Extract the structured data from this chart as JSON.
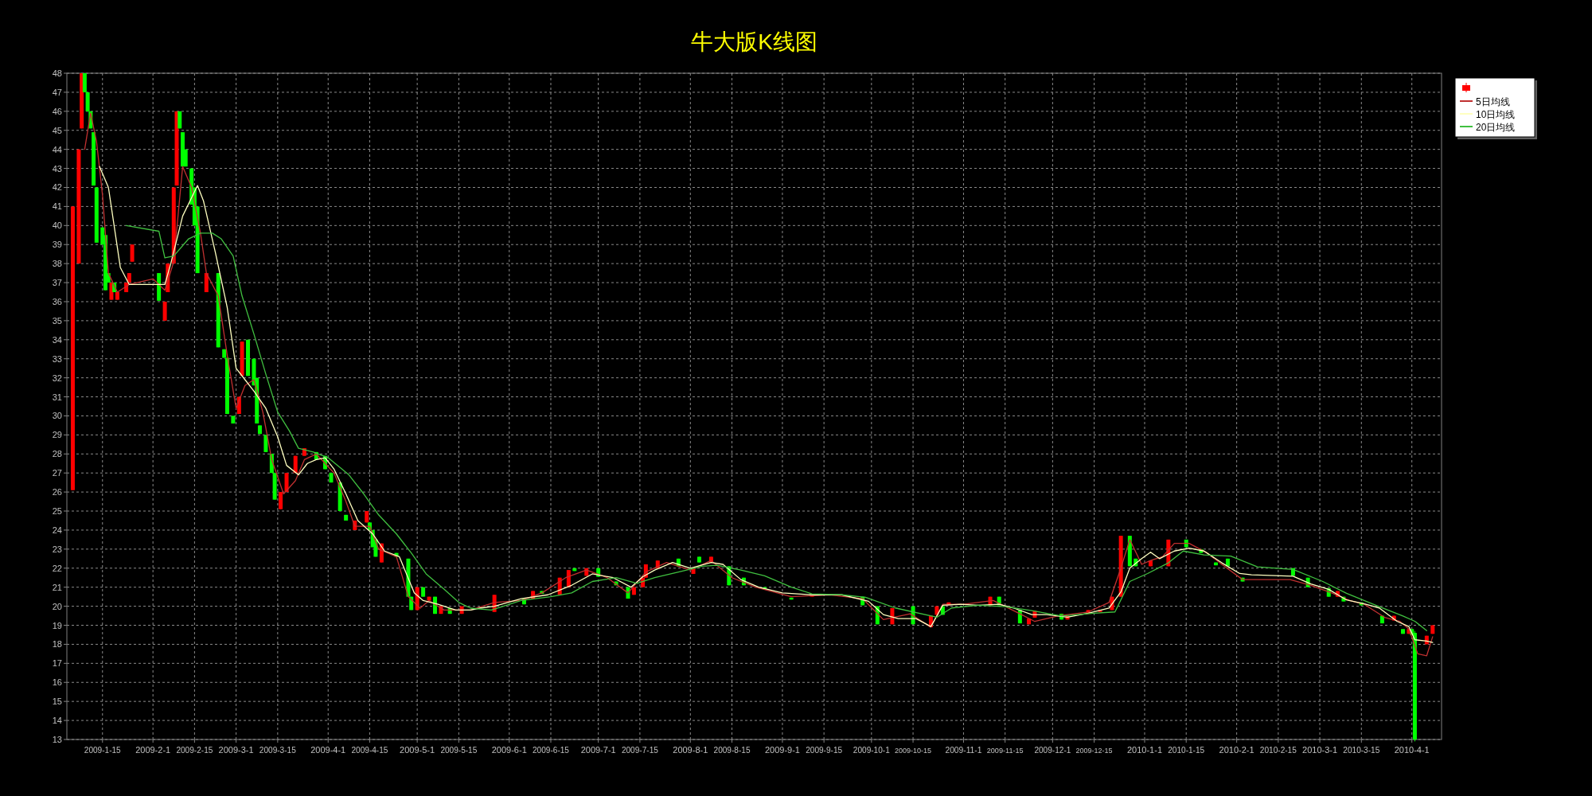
{
  "chart_data": {
    "type": "candlestick",
    "title": "牛大版K线图",
    "xlim": [
      "2009-01-03",
      "2010-04-11"
    ],
    "ylim": [
      13,
      48
    ],
    "xticks": [
      {
        "value": "2009-01-15",
        "label": "2009-1-15"
      },
      {
        "value": "2009-02-01",
        "label": "2009-2-1"
      },
      {
        "value": "2009-02-15",
        "label": "2009-2-15"
      },
      {
        "value": "2009-03-01",
        "label": "2009-3-1"
      },
      {
        "value": "2009-03-15",
        "label": "2009-3-15"
      },
      {
        "value": "2009-04-01",
        "label": "2009-4-1"
      },
      {
        "value": "2009-04-15",
        "label": "2009-4-15"
      },
      {
        "value": "2009-05-01",
        "label": "2009-5-1"
      },
      {
        "value": "2009-05-15",
        "label": "2009-5-15"
      },
      {
        "value": "2009-06-01",
        "label": "2009-6-1"
      },
      {
        "value": "2009-06-15",
        "label": "2009-6-15"
      },
      {
        "value": "2009-07-01",
        "label": "2009-7-1"
      },
      {
        "value": "2009-07-15",
        "label": "2009-7-15"
      },
      {
        "value": "2009-08-01",
        "label": "2009-8-1"
      },
      {
        "value": "2009-08-15",
        "label": "2009-8-15"
      },
      {
        "value": "2009-09-01",
        "label": "2009-9-1"
      },
      {
        "value": "2009-09-15",
        "label": "2009-9-15"
      },
      {
        "value": "2009-10-01",
        "label": "2009-10-1"
      },
      {
        "value": "2009-10-15",
        "label": "2009-10-15"
      },
      {
        "value": "2009-11-01",
        "label": "2009-11-1"
      },
      {
        "value": "2009-11-15",
        "label": "2009-11-15"
      },
      {
        "value": "2009-12-01",
        "label": "2009-12-1"
      },
      {
        "value": "2009-12-15",
        "label": "2009-12-15"
      },
      {
        "value": "2010-01-01",
        "label": "2010-1-1"
      },
      {
        "value": "2010-01-15",
        "label": "2010-1-15"
      },
      {
        "value": "2010-02-01",
        "label": "2010-2-1"
      },
      {
        "value": "2010-02-15",
        "label": "2010-2-15"
      },
      {
        "value": "2010-03-01",
        "label": "2010-3-1"
      },
      {
        "value": "2010-03-15",
        "label": "2010-3-15"
      },
      {
        "value": "2010-04-01",
        "label": "2010-4-1"
      }
    ],
    "yticks": [
      13,
      14,
      15,
      16,
      17,
      18,
      19,
      20,
      21,
      22,
      23,
      24,
      25,
      26,
      27,
      28,
      29,
      30,
      31,
      32,
      33,
      34,
      35,
      36,
      37,
      38,
      39,
      40,
      41,
      42,
      43,
      44,
      45,
      46,
      47,
      48
    ],
    "grid": true,
    "legend": "top right",
    "series": [
      {
        "type": "line",
        "name": "5日均线",
        "color": "#c03030",
        "x": [
          "2009-01-09",
          "2009-01-11",
          "2009-01-13",
          "2009-01-15",
          "2009-01-17",
          "2009-01-20",
          "2009-01-24",
          "2009-02-01",
          "2009-02-05",
          "2009-02-08",
          "2009-02-11",
          "2009-02-14",
          "2009-02-17",
          "2009-02-19",
          "2009-02-23",
          "2009-02-26",
          "2009-03-01",
          "2009-03-04",
          "2009-03-07",
          "2009-03-10",
          "2009-03-13",
          "2009-03-17",
          "2009-03-21",
          "2009-03-24",
          "2009-03-28",
          "2009-03-31",
          "2009-04-03",
          "2009-04-07",
          "2009-04-10",
          "2009-04-15",
          "2009-04-18",
          "2009-04-24",
          "2009-04-28",
          "2009-05-02",
          "2009-05-05",
          "2009-05-10",
          "2009-05-19",
          "2009-05-27",
          "2009-06-05",
          "2009-06-12",
          "2009-06-20",
          "2009-06-27",
          "2009-07-04",
          "2009-07-11",
          "2009-07-17",
          "2009-07-24",
          "2009-08-01",
          "2009-08-08",
          "2009-08-15",
          "2009-08-23",
          "2009-09-04",
          "2009-09-17",
          "2009-09-28",
          "2009-10-05",
          "2009-10-14",
          "2009-10-21",
          "2009-10-25",
          "2009-11-01",
          "2009-11-11",
          "2009-11-20",
          "2009-11-25",
          "2009-12-03",
          "2009-12-13",
          "2009-12-20",
          "2009-12-24",
          "2009-12-27",
          "2009-12-31",
          "2010-01-03",
          "2010-01-07",
          "2010-01-11",
          "2010-01-16",
          "2010-01-22",
          "2010-01-27",
          "2010-02-03",
          "2010-02-19",
          "2010-02-26",
          "2010-03-05",
          "2010-03-11",
          "2010-03-16",
          "2010-03-23",
          "2010-03-28",
          "2010-03-31",
          "2010-04-03",
          "2010-04-06",
          "2010-04-08"
        ],
        "values": [
          44.0,
          45.9,
          44.4,
          41.6,
          37.5,
          36.5,
          36.9,
          37.2,
          36.6,
          38.1,
          43.1,
          42.0,
          39.6,
          37.5,
          36.3,
          33.2,
          30.4,
          31.6,
          31.9,
          30.2,
          27.7,
          25.9,
          26.6,
          27.7,
          28.0,
          27.5,
          27.0,
          25.5,
          24.2,
          24.2,
          23.0,
          22.6,
          20.5,
          19.9,
          20.3,
          19.8,
          19.8,
          20.2,
          20.3,
          20.7,
          21.5,
          21.9,
          21.5,
          20.7,
          21.8,
          22.3,
          21.9,
          22.4,
          21.5,
          21.0,
          20.5,
          20.6,
          20.4,
          19.3,
          19.6,
          18.9,
          20.1,
          20.1,
          20.3,
          19.6,
          19.2,
          19.5,
          19.7,
          20.2,
          22.0,
          23.5,
          22.2,
          22.4,
          22.6,
          23.3,
          23.3,
          22.8,
          22.2,
          21.4,
          21.4,
          21.1,
          20.7,
          20.3,
          20.1,
          19.4,
          19.2,
          18.8,
          17.5,
          17.4,
          18.4
        ]
      },
      {
        "type": "line",
        "name": "10日均线",
        "color": "#ffffc0",
        "x": [
          "2009-01-14",
          "2009-01-17",
          "2009-01-19",
          "2009-01-21",
          "2009-01-24",
          "2009-02-01",
          "2009-02-05",
          "2009-02-07",
          "2009-02-11",
          "2009-02-16",
          "2009-02-18",
          "2009-02-22",
          "2009-02-26",
          "2009-03-01",
          "2009-03-04",
          "2009-03-07",
          "2009-03-11",
          "2009-03-15",
          "2009-03-18",
          "2009-03-22",
          "2009-03-25",
          "2009-03-28",
          "2009-03-31",
          "2009-04-03",
          "2009-04-07",
          "2009-04-11",
          "2009-04-16",
          "2009-04-20",
          "2009-04-25",
          "2009-04-30",
          "2009-05-03",
          "2009-05-08",
          "2009-05-14",
          "2009-05-19",
          "2009-05-22",
          "2009-05-27",
          "2009-06-05",
          "2009-06-14",
          "2009-06-22",
          "2009-06-29",
          "2009-07-06",
          "2009-07-12",
          "2009-07-16",
          "2009-07-20",
          "2009-07-26",
          "2009-08-01",
          "2009-08-08",
          "2009-08-12",
          "2009-08-18",
          "2009-08-24",
          "2009-09-01",
          "2009-09-11",
          "2009-09-21",
          "2009-09-30",
          "2009-10-05",
          "2009-10-10",
          "2009-10-16",
          "2009-10-21",
          "2009-10-25",
          "2009-10-31",
          "2009-11-06",
          "2009-11-13",
          "2009-11-18",
          "2009-11-24",
          "2009-11-29",
          "2009-12-06",
          "2009-12-13",
          "2009-12-20",
          "2009-12-24",
          "2009-12-27",
          "2009-12-31",
          "2010-01-03",
          "2010-01-06",
          "2010-01-11",
          "2010-01-16",
          "2010-01-21",
          "2010-01-27",
          "2010-02-02",
          "2010-02-06",
          "2010-02-20",
          "2010-02-26",
          "2010-03-04",
          "2010-03-10",
          "2010-03-16",
          "2010-03-21",
          "2010-03-27",
          "2010-03-31",
          "2010-04-02",
          "2010-04-06",
          "2010-04-08"
        ],
        "values": [
          43.1,
          42.0,
          39.9,
          37.8,
          36.9,
          36.9,
          36.9,
          38.0,
          40.5,
          42.1,
          41.3,
          38.6,
          35.7,
          32.5,
          31.9,
          31.3,
          30.4,
          28.9,
          27.4,
          26.9,
          27.5,
          27.7,
          27.8,
          27.2,
          25.9,
          24.5,
          23.8,
          22.9,
          22.6,
          20.7,
          20.3,
          20.1,
          19.8,
          19.8,
          19.9,
          20.0,
          20.4,
          20.6,
          21.1,
          21.7,
          21.5,
          21.0,
          21.55,
          21.9,
          22.3,
          22.0,
          22.3,
          22.2,
          21.4,
          21.0,
          20.7,
          20.6,
          20.6,
          20.26,
          19.56,
          19.35,
          19.35,
          18.93,
          20.05,
          20.1,
          20.05,
          20.1,
          19.9,
          19.56,
          19.56,
          19.42,
          19.63,
          19.9,
          20.75,
          22.0,
          22.5,
          22.84,
          22.5,
          22.9,
          23.05,
          22.9,
          22.28,
          21.72,
          21.65,
          21.58,
          21.17,
          20.89,
          20.33,
          20.12,
          19.91,
          19.21,
          18.93,
          18.24,
          18.17,
          18.1
        ]
      },
      {
        "type": "line",
        "name": "20日均线",
        "color": "#40c040",
        "x": [
          "2009-01-23",
          "2009-02-03",
          "2009-02-05",
          "2009-02-08",
          "2009-02-13",
          "2009-02-17",
          "2009-02-21",
          "2009-02-24",
          "2009-02-28",
          "2009-03-03",
          "2009-03-07",
          "2009-03-11",
          "2009-03-15",
          "2009-03-19",
          "2009-03-22",
          "2009-03-27",
          "2009-04-01",
          "2009-04-08",
          "2009-04-13",
          "2009-04-18",
          "2009-04-24",
          "2009-04-29",
          "2009-05-04",
          "2009-05-10",
          "2009-05-15",
          "2009-05-19",
          "2009-05-26",
          "2009-06-05",
          "2009-06-15",
          "2009-06-22",
          "2009-06-29",
          "2009-07-07",
          "2009-07-14",
          "2009-07-20",
          "2009-07-28",
          "2009-08-05",
          "2009-08-10",
          "2009-08-18",
          "2009-08-26",
          "2009-09-04",
          "2009-09-11",
          "2009-09-21",
          "2009-09-29",
          "2009-10-09",
          "2009-10-23",
          "2009-10-28",
          "2009-11-06",
          "2009-11-15",
          "2009-11-24",
          "2009-12-04",
          "2009-12-15",
          "2009-12-22",
          "2009-12-27",
          "2010-01-02",
          "2010-01-09",
          "2010-01-14",
          "2010-01-21",
          "2010-01-30",
          "2010-02-08",
          "2010-02-20",
          "2010-03-02",
          "2010-03-10",
          "2010-03-21",
          "2010-03-29",
          "2010-04-02",
          "2010-04-06"
        ],
        "values": [
          40.0,
          39.7,
          38.3,
          38.4,
          39.3,
          39.6,
          39.6,
          39.3,
          38.4,
          36.3,
          34.3,
          32.2,
          30.2,
          29.2,
          28.3,
          28.1,
          27.8,
          26.9,
          25.9,
          24.8,
          23.8,
          22.8,
          21.7,
          20.9,
          20.2,
          19.9,
          19.8,
          20.3,
          20.5,
          20.7,
          21.3,
          21.5,
          21.2,
          21.5,
          21.8,
          22.1,
          22.15,
          21.9,
          21.6,
          21.0,
          20.65,
          20.6,
          20.47,
          19.91,
          19.42,
          19.91,
          20.05,
          19.98,
          19.77,
          19.49,
          19.63,
          19.7,
          21.3,
          21.72,
          22.28,
          22.9,
          22.7,
          22.63,
          22.07,
          21.93,
          21.3,
          20.68,
          19.98,
          19.49,
          19.21,
          18.72
        ]
      },
      {
        "type": "candlestick",
        "x": [
          "2009-01-05",
          "2009-01-07",
          "2009-01-08",
          "2009-01-09",
          "2009-01-10",
          "2009-01-11",
          "2009-01-12",
          "2009-01-13",
          "2009-01-15",
          "2009-01-16",
          "2009-01-17",
          "2009-01-18",
          "2009-01-19",
          "2009-01-20",
          "2009-01-23",
          "2009-01-24",
          "2009-01-25",
          "2009-02-03",
          "2009-02-05",
          "2009-02-06",
          "2009-02-08",
          "2009-02-09",
          "2009-02-10",
          "2009-02-11",
          "2009-02-12",
          "2009-02-14",
          "2009-02-15",
          "2009-02-16",
          "2009-02-19",
          "2009-02-23",
          "2009-02-25",
          "2009-02-26",
          "2009-02-28",
          "2009-03-02",
          "2009-03-03",
          "2009-03-05",
          "2009-03-07",
          "2009-03-08",
          "2009-03-09",
          "2009-03-11",
          "2009-03-13",
          "2009-03-14",
          "2009-03-16",
          "2009-03-18",
          "2009-03-21",
          "2009-03-24",
          "2009-03-28",
          "2009-03-31",
          "2009-04-02",
          "2009-04-05",
          "2009-04-07",
          "2009-04-10",
          "2009-04-14",
          "2009-04-15",
          "2009-04-16",
          "2009-04-17",
          "2009-04-19",
          "2009-04-24",
          "2009-04-28",
          "2009-04-29",
          "2009-05-01",
          "2009-05-03",
          "2009-05-05",
          "2009-05-07",
          "2009-05-09",
          "2009-05-12",
          "2009-05-16",
          "2009-05-27",
          "2009-06-06",
          "2009-06-09",
          "2009-06-12",
          "2009-06-18",
          "2009-06-21",
          "2009-06-23",
          "2009-06-27",
          "2009-07-01",
          "2009-07-07",
          "2009-07-11",
          "2009-07-13",
          "2009-07-16",
          "2009-07-17",
          "2009-07-21",
          "2009-07-28",
          "2009-08-02",
          "2009-08-04",
          "2009-08-08",
          "2009-08-14",
          "2009-08-19",
          "2009-08-26",
          "2009-09-04",
          "2009-09-11",
          "2009-09-28",
          "2009-10-03",
          "2009-10-08",
          "2009-10-15",
          "2009-10-21",
          "2009-10-23",
          "2009-10-25",
          "2009-10-27",
          "2009-11-10",
          "2009-11-13",
          "2009-11-20",
          "2009-11-23",
          "2009-11-25",
          "2009-12-04",
          "2009-12-06",
          "2009-12-13",
          "2009-12-17",
          "2009-12-21",
          "2009-12-24",
          "2009-12-27",
          "2009-12-29",
          "2010-01-03",
          "2010-01-09",
          "2010-01-15",
          "2010-01-20",
          "2010-01-25",
          "2010-01-29",
          "2010-02-03",
          "2010-02-20",
          "2010-02-25",
          "2010-03-04",
          "2010-03-07",
          "2010-03-09",
          "2010-03-15",
          "2010-03-22",
          "2010-03-26",
          "2010-03-29",
          "2010-03-31",
          "2010-04-01",
          "2010-04-02",
          "2010-04-06",
          "2010-04-08"
        ],
        "ohlc": [
          [
            26.1,
            41.0,
            26.1,
            41.0
          ],
          [
            38.0,
            44.0,
            38.0,
            44.0
          ],
          [
            45.1,
            48.0,
            45.1,
            48.0
          ],
          [
            48.0,
            48.0,
            47.0,
            47.0
          ],
          [
            47.0,
            47.0,
            46.0,
            46.0
          ],
          [
            46.0,
            46.0,
            45.1,
            45.1
          ],
          [
            44.9,
            44.9,
            42.1,
            42.1
          ],
          [
            42.0,
            42.0,
            39.1,
            39.1
          ],
          [
            39.9,
            39.9,
            39.0,
            39.0
          ],
          [
            39.5,
            39.5,
            36.6,
            36.6
          ],
          [
            37.5,
            37.5,
            37.0,
            37.0
          ],
          [
            36.1,
            37.0,
            36.1,
            37.0
          ],
          [
            37.0,
            37.0,
            36.5,
            36.5
          ],
          [
            36.1,
            36.5,
            36.1,
            36.5
          ],
          [
            36.5,
            37.0,
            36.5,
            37.0
          ],
          [
            37.0,
            37.5,
            37.0,
            37.5
          ],
          [
            38.1,
            39.0,
            38.1,
            39.0
          ],
          [
            37.5,
            37.5,
            36.05,
            36.05
          ],
          [
            35.0,
            36.0,
            35.0,
            36.0
          ],
          [
            36.5,
            38.0,
            36.5,
            38.0
          ],
          [
            38.0,
            42.0,
            38.0,
            42.0
          ],
          [
            42.1,
            46.0,
            42.1,
            46.0
          ],
          [
            46.0,
            46.0,
            45.1,
            45.1
          ],
          [
            44.9,
            44.9,
            43.1,
            43.1
          ],
          [
            44.0,
            44.0,
            43.1,
            43.1
          ],
          [
            43.0,
            43.0,
            41.1,
            41.1
          ],
          [
            42.0,
            42.0,
            40.0,
            40.0
          ],
          [
            41.0,
            41.0,
            37.5,
            37.5
          ],
          [
            36.5,
            37.5,
            36.5,
            37.5
          ],
          [
            37.5,
            37.5,
            33.6,
            33.6
          ],
          [
            33.5,
            33.5,
            33.05,
            33.05
          ],
          [
            33.05,
            33.05,
            30.1,
            30.1
          ],
          [
            30.0,
            30.0,
            29.6,
            29.6
          ],
          [
            30.1,
            31.0,
            30.1,
            31.0
          ],
          [
            32.1,
            33.9,
            32.1,
            33.9
          ],
          [
            34.0,
            34.0,
            32.1,
            32.1
          ],
          [
            33.0,
            33.0,
            31.6,
            31.6
          ],
          [
            32.0,
            32.0,
            29.6,
            29.6
          ],
          [
            29.5,
            29.5,
            29.05,
            29.05
          ],
          [
            29.0,
            29.0,
            28.1,
            28.1
          ],
          [
            28.0,
            28.0,
            27.0,
            27.0
          ],
          [
            27.0,
            27.0,
            25.6,
            25.6
          ],
          [
            25.1,
            26.0,
            25.1,
            26.0
          ],
          [
            26.0,
            27.0,
            26.0,
            27.0
          ],
          [
            27.0,
            27.9,
            27.0,
            27.9
          ],
          [
            27.9,
            28.3,
            27.9,
            28.3
          ],
          [
            28.1,
            28.1,
            27.7,
            27.7
          ],
          [
            27.9,
            27.9,
            27.2,
            27.2
          ],
          [
            27.0,
            27.0,
            26.5,
            26.5
          ],
          [
            26.5,
            26.5,
            25.0,
            25.0
          ],
          [
            24.8,
            24.8,
            24.5,
            24.5
          ],
          [
            24.0,
            24.5,
            24.0,
            24.5
          ],
          [
            24.4,
            25.0,
            24.4,
            25.0
          ],
          [
            24.4,
            24.4,
            24.0,
            24.0
          ],
          [
            24.0,
            24.0,
            23.1,
            23.1
          ],
          [
            23.5,
            23.5,
            22.6,
            22.6
          ],
          [
            22.3,
            23.3,
            22.3,
            23.3
          ],
          [
            22.8,
            22.8,
            22.6,
            22.6
          ],
          [
            22.5,
            22.5,
            20.5,
            20.5
          ],
          [
            20.5,
            20.5,
            19.8,
            19.8
          ],
          [
            19.8,
            21.0,
            19.8,
            21.0
          ],
          [
            21.0,
            21.0,
            20.5,
            20.5
          ],
          [
            20.3,
            20.5,
            20.3,
            20.5
          ],
          [
            20.5,
            20.5,
            19.6,
            19.6
          ],
          [
            19.6,
            20.0,
            19.6,
            20.0
          ],
          [
            19.9,
            19.9,
            19.6,
            19.6
          ],
          [
            19.6,
            20.0,
            19.6,
            20.0
          ],
          [
            19.7,
            20.6,
            19.7,
            20.6
          ],
          [
            20.4,
            20.4,
            20.1,
            20.1
          ],
          [
            20.4,
            20.8,
            20.4,
            20.8
          ],
          [
            20.8,
            20.8,
            20.65,
            20.65
          ],
          [
            20.6,
            21.5,
            20.6,
            21.5
          ],
          [
            21.0,
            21.9,
            21.0,
            21.9
          ],
          [
            22.0,
            22.0,
            21.85,
            21.85
          ],
          [
            21.6,
            22.0,
            21.6,
            22.0
          ],
          [
            22.0,
            22.0,
            21.55,
            21.55
          ],
          [
            21.3,
            21.3,
            21.1,
            21.1
          ],
          [
            21.0,
            21.0,
            20.4,
            20.4
          ],
          [
            20.6,
            21.0,
            20.6,
            21.0
          ],
          [
            21.0,
            21.5,
            21.0,
            21.5
          ],
          [
            21.5,
            22.2,
            21.5,
            22.2
          ],
          [
            22.0,
            22.4,
            22.0,
            22.4
          ],
          [
            22.5,
            22.5,
            22.1,
            22.1
          ],
          [
            21.7,
            22.0,
            21.7,
            22.0
          ],
          [
            22.6,
            22.6,
            22.3,
            22.3
          ],
          [
            22.3,
            22.6,
            22.3,
            22.6
          ],
          [
            22.1,
            22.1,
            21.1,
            21.1
          ],
          [
            21.5,
            21.5,
            21.1,
            21.1
          ],
          [
            21.0,
            21.0,
            20.9,
            20.9
          ],
          [
            20.45,
            20.45,
            20.35,
            20.35
          ],
          [
            20.5,
            20.6,
            20.5,
            20.6
          ],
          [
            20.5,
            20.5,
            20.05,
            20.05
          ],
          [
            20.0,
            20.0,
            19.05,
            19.05
          ],
          [
            19.05,
            19.9,
            19.05,
            19.9
          ],
          [
            20.0,
            20.0,
            19.05,
            19.05
          ],
          [
            18.9,
            19.5,
            18.9,
            19.5
          ],
          [
            19.55,
            20.0,
            19.55,
            20.0
          ],
          [
            20.0,
            20.0,
            19.55,
            19.55
          ],
          [
            20.05,
            20.2,
            20.05,
            20.2
          ],
          [
            20.05,
            20.5,
            20.05,
            20.5
          ],
          [
            20.5,
            20.5,
            20.05,
            20.05
          ],
          [
            19.8,
            19.8,
            19.1,
            19.1
          ],
          [
            19.05,
            19.35,
            19.05,
            19.35
          ],
          [
            19.4,
            19.75,
            19.4,
            19.75
          ],
          [
            19.6,
            19.6,
            19.3,
            19.3
          ],
          [
            19.3,
            19.5,
            19.3,
            19.5
          ],
          [
            19.6,
            19.8,
            19.6,
            19.8
          ],
          [
            19.7,
            19.8,
            19.7,
            19.8
          ],
          [
            19.8,
            20.5,
            19.8,
            20.5
          ],
          [
            20.5,
            23.7,
            20.5,
            23.7
          ],
          [
            23.7,
            23.7,
            22.1,
            22.1
          ],
          [
            22.5,
            22.5,
            22.1,
            22.1
          ],
          [
            22.1,
            22.4,
            22.1,
            22.4
          ],
          [
            22.1,
            23.5,
            22.1,
            23.5
          ],
          [
            23.5,
            23.5,
            23.1,
            23.1
          ],
          [
            23.0,
            23.0,
            22.8,
            22.8
          ],
          [
            22.3,
            22.3,
            22.15,
            22.15
          ],
          [
            22.5,
            22.5,
            22.1,
            22.1
          ],
          [
            21.5,
            21.5,
            21.3,
            21.3
          ],
          [
            22.0,
            22.0,
            21.6,
            21.6
          ],
          [
            21.5,
            21.5,
            21.0,
            21.0
          ],
          [
            20.95,
            20.95,
            20.5,
            20.5
          ],
          [
            20.5,
            20.8,
            20.5,
            20.8
          ],
          [
            20.5,
            20.5,
            20.25,
            20.25
          ],
          [
            20.2,
            20.2,
            20.05,
            20.05
          ],
          [
            19.5,
            19.5,
            19.1,
            19.1
          ],
          [
            19.25,
            19.5,
            19.25,
            19.5
          ],
          [
            18.8,
            18.8,
            18.55,
            18.55
          ],
          [
            18.55,
            18.8,
            18.55,
            18.8
          ],
          [
            18.8,
            18.8,
            18.5,
            18.5
          ],
          [
            18.6,
            18.7,
            12.9,
            13.0
          ],
          [
            18.0,
            18.45,
            18.0,
            18.45
          ],
          [
            18.55,
            19.0,
            18.55,
            19.0
          ]
        ],
        "colors": [
          "#ff0000",
          "#ff0000",
          "#ff0000",
          "#00ff00",
          "#00ff00",
          "#00ff00",
          "#00ff00",
          "#00ff00",
          "#00ff00",
          "#00ff00",
          "#00ff00",
          "#ff0000",
          "#00ff00",
          "#ff0000",
          "#ff0000",
          "#ff0000",
          "#ff0000",
          "#00ff00",
          "#ff0000",
          "#ff0000",
          "#ff0000",
          "#ff0000",
          "#00ff00",
          "#00ff00",
          "#00ff00",
          "#00ff00",
          "#00ff00",
          "#00ff00",
          "#ff0000",
          "#00ff00",
          "#00ff00",
          "#00ff00",
          "#00ff00",
          "#ff0000",
          "#ff0000",
          "#00ff00",
          "#00ff00",
          "#00ff00",
          "#00ff00",
          "#00ff00",
          "#00ff00",
          "#00ff00",
          "#ff0000",
          "#ff0000",
          "#ff0000",
          "#ff0000",
          "#00ff00",
          "#00ff00",
          "#00ff00",
          "#00ff00",
          "#00ff00",
          "#ff0000",
          "#ff0000",
          "#00ff00",
          "#00ff00",
          "#00ff00",
          "#ff0000",
          "#00ff00",
          "#00ff00",
          "#00ff00",
          "#ff0000",
          "#00ff00",
          "#ff0000",
          "#00ff00",
          "#ff0000",
          "#00ff00",
          "#ff0000",
          "#ff0000",
          "#00ff00",
          "#ff0000",
          "#00ff00",
          "#ff0000",
          "#ff0000",
          "#00ff00",
          "#ff0000",
          "#00ff00",
          "#00ff00",
          "#00ff00",
          "#ff0000",
          "#ff0000",
          "#ff0000",
          "#ff0000",
          "#00ff00",
          "#ff0000",
          "#00ff00",
          "#ff0000",
          "#00ff00",
          "#00ff00",
          "#00ff00",
          "#00ff00",
          "#ff0000",
          "#00ff00",
          "#00ff00",
          "#ff0000",
          "#00ff00",
          "#ff0000",
          "#ff0000",
          "#00ff00",
          "#ff0000",
          "#ff0000",
          "#00ff00",
          "#00ff00",
          "#ff0000",
          "#ff0000",
          "#00ff00",
          "#ff0000",
          "#ff0000",
          "#ff0000",
          "#ff0000",
          "#ff0000",
          "#00ff00",
          "#00ff00",
          "#ff0000",
          "#ff0000",
          "#00ff00",
          "#00ff00",
          "#00ff00",
          "#00ff00",
          "#00ff00",
          "#00ff00",
          "#00ff00",
          "#00ff00",
          "#ff0000",
          "#00ff00",
          "#00ff00",
          "#00ff00",
          "#ff0000",
          "#00ff00",
          "#ff0000",
          "#00ff00",
          "#00ff00",
          "#ff0000",
          "#ff0000"
        ]
      }
    ]
  }
}
